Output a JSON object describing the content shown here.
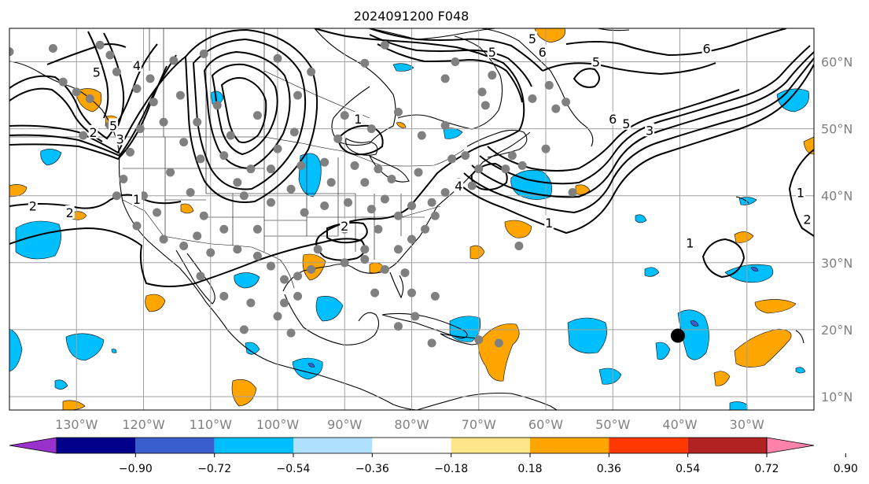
{
  "title": "2024091200 F048",
  "map": {
    "lon_range": [
      -140,
      -20
    ],
    "lat_range": [
      8,
      65
    ],
    "lon_ticks": [
      {
        "lon": -130,
        "label": "130°W"
      },
      {
        "lon": -120,
        "label": "120°W"
      },
      {
        "lon": -110,
        "label": "110°W"
      },
      {
        "lon": -100,
        "label": "100°W"
      },
      {
        "lon": -90,
        "label": "90°W"
      },
      {
        "lon": -80,
        "label": "80°W"
      },
      {
        "lon": -70,
        "label": "70°W"
      },
      {
        "lon": -60,
        "label": "60°W"
      },
      {
        "lon": -50,
        "label": "50°W"
      },
      {
        "lon": -40,
        "label": "40°W"
      },
      {
        "lon": -30,
        "label": "30°W"
      }
    ],
    "lat_ticks": [
      {
        "lat": 60,
        "label": "60°N"
      },
      {
        "lat": 50,
        "label": "50°N"
      },
      {
        "lat": 40,
        "label": "40°N"
      },
      {
        "lat": 30,
        "label": "30°N"
      },
      {
        "lat": 20,
        "label": "20°N"
      },
      {
        "lat": 10,
        "label": "10°N"
      }
    ],
    "grid": true,
    "marker_color": "#808080",
    "highlight_marker": {
      "lon": -40.3,
      "lat": 19.1,
      "color": "#000000"
    },
    "station_markers": [
      [
        -140,
        61.5
      ],
      [
        -126.5,
        62.5
      ],
      [
        -133.5,
        62
      ],
      [
        -125,
        61
      ],
      [
        -115.5,
        60.2
      ],
      [
        -111,
        61.2
      ],
      [
        -100,
        60.5
      ],
      [
        -95,
        58.5
      ],
      [
        -87,
        59.8
      ],
      [
        -84,
        62.5
      ],
      [
        -75,
        57.5
      ],
      [
        -73.5,
        60
      ],
      [
        -68,
        58
      ],
      [
        -69.5,
        55.5
      ],
      [
        -62,
        54.5
      ],
      [
        -58.5,
        53
      ],
      [
        -60,
        47
      ],
      [
        -65,
        46
      ],
      [
        -66,
        44
      ],
      [
        -63.5,
        44.5
      ],
      [
        -72,
        46
      ],
      [
        -74,
        45.5
      ],
      [
        -79,
        43.5
      ],
      [
        -83,
        42.5
      ],
      [
        -85,
        44
      ],
      [
        -87,
        42
      ],
      [
        -88.5,
        44.5
      ],
      [
        -93,
        45
      ],
      [
        -97.5,
        49.5
      ],
      [
        -100,
        47
      ],
      [
        -104,
        44
      ],
      [
        -106,
        42
      ],
      [
        -108,
        46
      ],
      [
        -111.5,
        45.5
      ],
      [
        -114,
        48
      ],
      [
        -117,
        51
      ],
      [
        -118.5,
        54
      ],
      [
        -121,
        56
      ],
      [
        -124,
        58.5
      ],
      [
        -128,
        54.5
      ],
      [
        -130,
        55.5
      ],
      [
        -132,
        57
      ],
      [
        -129,
        49
      ],
      [
        -125,
        50.5
      ],
      [
        -122,
        46.5
      ],
      [
        -123,
        42.5
      ],
      [
        -120,
        40
      ],
      [
        -116,
        43.5
      ],
      [
        -113,
        40.5
      ],
      [
        -111,
        37
      ],
      [
        -108,
        35
      ],
      [
        -106,
        32
      ],
      [
        -103,
        35
      ],
      [
        -101,
        39
      ],
      [
        -98,
        41
      ],
      [
        -96,
        37.5
      ],
      [
        -93,
        38.5
      ],
      [
        -90,
        35
      ],
      [
        -87,
        32
      ],
      [
        -85,
        35
      ],
      [
        -82,
        37
      ],
      [
        -80,
        38.5
      ],
      [
        -77,
        39
      ],
      [
        -75,
        40.5
      ],
      [
        -73,
        42
      ],
      [
        -71,
        41.5
      ],
      [
        -70,
        44
      ],
      [
        -82,
        32
      ],
      [
        -84,
        29
      ],
      [
        -87,
        30.5
      ],
      [
        -90,
        30
      ],
      [
        -94,
        32
      ],
      [
        -97,
        28
      ],
      [
        -99,
        27.5
      ],
      [
        -101,
        29.5
      ],
      [
        -103,
        31
      ],
      [
        -110,
        31.5
      ],
      [
        -114,
        32.5
      ],
      [
        -117,
        33.5
      ],
      [
        -97,
        25
      ],
      [
        -99,
        24
      ],
      [
        -98,
        19.5
      ],
      [
        -80,
        25.5
      ],
      [
        -76.5,
        25
      ],
      [
        -79.5,
        22
      ],
      [
        -82,
        20.5
      ],
      [
        -77,
        18
      ],
      [
        -70,
        18.5
      ],
      [
        -67,
        18
      ],
      [
        -64,
        32.5
      ],
      [
        -56,
        40.5
      ],
      [
        -57,
        54
      ],
      [
        -59.5,
        56.5
      ],
      [
        -69,
        53.5
      ],
      [
        -75,
        50.5
      ],
      [
        -78.5,
        49
      ],
      [
        -82,
        52.5
      ],
      [
        -86,
        50
      ],
      [
        -90,
        52
      ],
      [
        -91,
        48.5
      ],
      [
        -97,
        55
      ],
      [
        -103,
        52
      ],
      [
        -107,
        49
      ],
      [
        -109,
        53.5
      ],
      [
        -112,
        51
      ],
      [
        -114.5,
        55
      ],
      [
        -120.5,
        50
      ],
      [
        -119,
        57.5
      ],
      [
        -124,
        40
      ],
      [
        -121,
        35.5
      ],
      [
        -118,
        37.5
      ],
      [
        -112,
        34
      ],
      [
        -105,
        40
      ],
      [
        -101,
        44
      ],
      [
        -96.5,
        44.5
      ],
      [
        -92,
        42
      ],
      [
        -89.5,
        39
      ],
      [
        -84,
        39.5
      ],
      [
        -86,
        38
      ],
      [
        -80,
        33.5
      ],
      [
        -78,
        35
      ],
      [
        -76.5,
        37
      ],
      [
        -81,
        28.5
      ],
      [
        -85.5,
        25.5
      ],
      [
        -95,
        29
      ],
      [
        -100,
        22
      ],
      [
        -105,
        20
      ],
      [
        -104,
        24
      ],
      [
        -108,
        25
      ],
      [
        -111.5,
        28
      ]
    ]
  },
  "chart_data": {
    "type": "contour",
    "contour_levels": [
      1,
      2,
      3,
      4,
      5,
      6
    ],
    "contour_labels": [
      {
        "lon": -127.5,
        "lat": 49.5,
        "label": "2"
      },
      {
        "lon": -123.5,
        "lat": 48.5,
        "label": "3"
      },
      {
        "lon": -124.5,
        "lat": 50.5,
        "label": "5"
      },
      {
        "lon": -127,
        "lat": 58.5,
        "label": "5"
      },
      {
        "lon": -121,
        "lat": 59.5,
        "label": "4"
      },
      {
        "lon": -136.5,
        "lat": 38.5,
        "label": "2"
      },
      {
        "lon": -131,
        "lat": 37.5,
        "label": "2"
      },
      {
        "lon": -121,
        "lat": 39.5,
        "label": "1"
      },
      {
        "lon": -90,
        "lat": 35.5,
        "label": "2"
      },
      {
        "lon": -88,
        "lat": 51.5,
        "label": "1"
      },
      {
        "lon": -68,
        "lat": 61.5,
        "label": "5"
      },
      {
        "lon": -60.5,
        "lat": 61.5,
        "label": "6"
      },
      {
        "lon": -62,
        "lat": 63.5,
        "label": "5"
      },
      {
        "lon": -36,
        "lat": 62,
        "label": "6"
      },
      {
        "lon": -52.5,
        "lat": 60,
        "label": "5"
      },
      {
        "lon": -50,
        "lat": 51.5,
        "label": "6"
      },
      {
        "lon": -48,
        "lat": 50.8,
        "label": "5"
      },
      {
        "lon": -44.5,
        "lat": 49.8,
        "label": "3"
      },
      {
        "lon": -73,
        "lat": 41.5,
        "label": "4"
      },
      {
        "lon": -59.5,
        "lat": 36,
        "label": "1"
      },
      {
        "lon": -22,
        "lat": 40.5,
        "label": "1"
      },
      {
        "lon": -21,
        "lat": 36.5,
        "label": "2"
      },
      {
        "lon": -38.5,
        "lat": 33,
        "label": "1"
      }
    ],
    "colorbar": {
      "ticks": [
        "−0.90",
        "−0.72",
        "−0.54",
        "−0.36",
        "−0.18",
        "0.18",
        "0.36",
        "0.54",
        "0.72",
        "0.90"
      ],
      "colors": [
        "#9932cc",
        "#00008b",
        "#3a5fcd",
        "#00bfff",
        "#b0e2ff",
        "#ffffff",
        "#fde68a",
        "#ffa500",
        "#ff3800",
        "#b22222",
        "#ff82ab"
      ],
      "extend": "both"
    }
  }
}
